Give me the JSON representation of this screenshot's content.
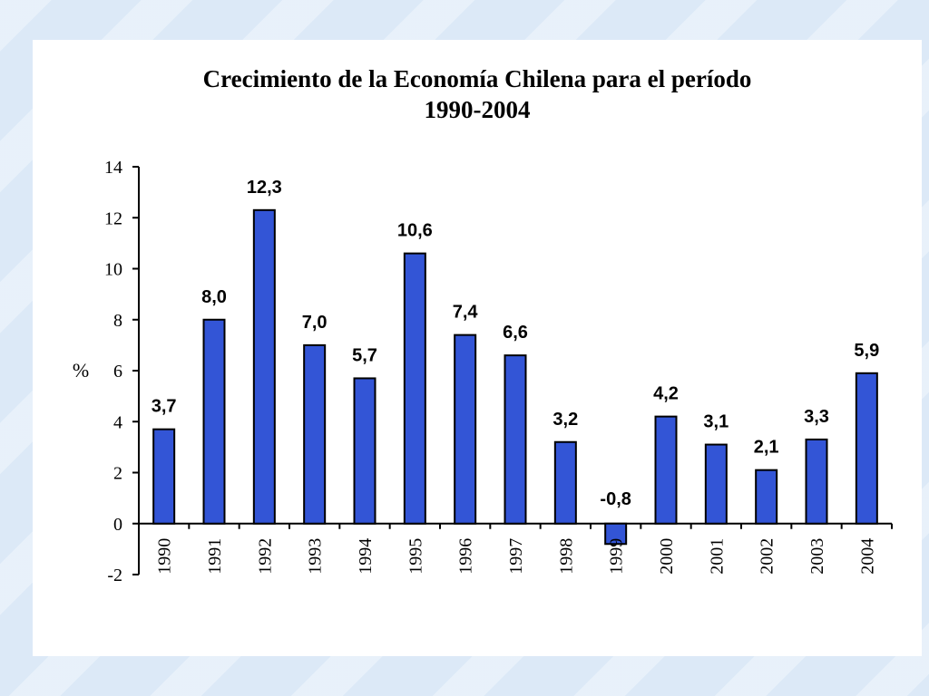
{
  "chart_data": {
    "type": "bar",
    "title_line1": "Crecimiento de la Economía Chilena para el período",
    "title_line2": "1990-2004",
    "ylabel": "%",
    "xlabel": "",
    "ylim": [
      -2,
      14
    ],
    "yticks": [
      "14",
      "12",
      "10",
      "8",
      "6",
      "4",
      "2",
      "0",
      "-2"
    ],
    "ytick_values": [
      14,
      12,
      10,
      8,
      6,
      4,
      2,
      0,
      -2
    ],
    "categories": [
      "1990",
      "1991",
      "1992",
      "1993",
      "1994",
      "1995",
      "1996",
      "1997",
      "1998",
      "1999",
      "2000",
      "2001",
      "2002",
      "2003",
      "2004"
    ],
    "values": [
      3.7,
      8.0,
      12.3,
      7.0,
      5.7,
      10.6,
      7.4,
      6.6,
      3.2,
      -0.8,
      4.2,
      3.1,
      2.1,
      3.3,
      5.9
    ],
    "data_labels": [
      "3,7",
      "8,0",
      "12,3",
      "7,0",
      "5,7",
      "10,6",
      "7,4",
      "6,6",
      "3,2",
      "-0,8",
      "4,2",
      "3,1",
      "2,1",
      "3,3",
      "5,9"
    ],
    "grid": false,
    "legend": "none",
    "bar_color": "#3355d6",
    "bar_edge_color": "#000000"
  }
}
